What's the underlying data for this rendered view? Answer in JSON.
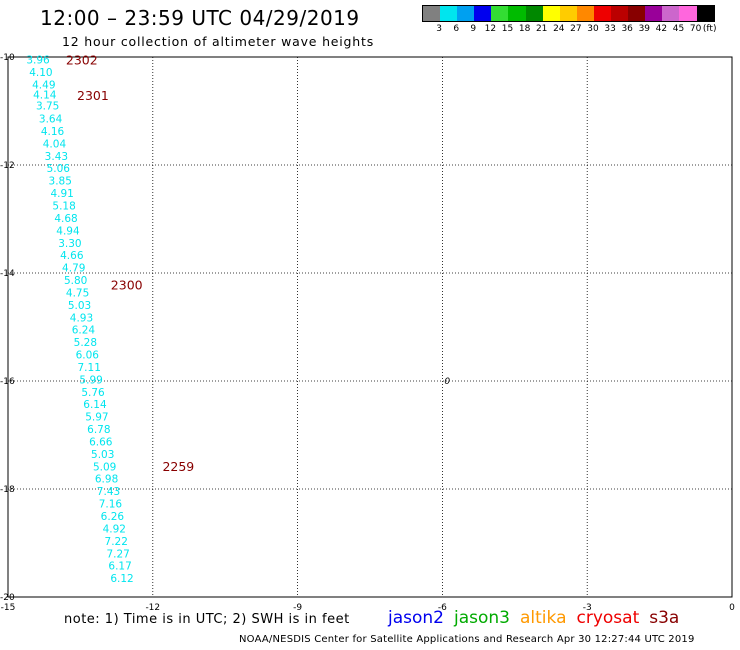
{
  "header": {
    "title": "12:00 – 23:59 UTC 04/29/2019",
    "subtitle": "12 hour collection of altimeter wave heights"
  },
  "colorbar": {
    "colors": [
      "#808080",
      "#00e5ee",
      "#00a0f0",
      "#0000ee",
      "#33dd33",
      "#00bb00",
      "#008800",
      "#ffff00",
      "#ffcc00",
      "#ff8800",
      "#ee0000",
      "#bb0000",
      "#880000",
      "#990099",
      "#cc66cc",
      "#ff66dd",
      "#000000"
    ],
    "labels": [
      "3",
      "6",
      "9",
      "12",
      "15",
      "18",
      "21",
      "24",
      "27",
      "30",
      "33",
      "36",
      "39",
      "42",
      "45",
      "70"
    ],
    "unit_label": "(ft)"
  },
  "chart_data": {
    "type": "scatter",
    "xlim": [
      -15,
      0
    ],
    "ylim": [
      -20,
      -10
    ],
    "x_ticks": [
      -15,
      -12,
      -9,
      -6,
      -3,
      0
    ],
    "y_ticks": [
      -10,
      -12,
      -14,
      -16,
      -18,
      -20
    ],
    "grid": "dotted",
    "swh_points": [
      {
        "x": -14.62,
        "y": -10.05,
        "label": "3.96"
      },
      {
        "x": -14.56,
        "y": -10.28,
        "label": "4.10"
      },
      {
        "x": -14.5,
        "y": -10.51,
        "label": "4.49"
      },
      {
        "x": -14.48,
        "y": -10.69,
        "label": "4.14"
      },
      {
        "x": -14.42,
        "y": -10.9,
        "label": "3.75"
      },
      {
        "x": -14.36,
        "y": -11.14,
        "label": "3.64"
      },
      {
        "x": -14.32,
        "y": -11.37,
        "label": "4.16"
      },
      {
        "x": -14.28,
        "y": -11.6,
        "label": "4.04"
      },
      {
        "x": -14.24,
        "y": -11.83,
        "label": "3.43"
      },
      {
        "x": -14.2,
        "y": -12.06,
        "label": "5.06"
      },
      {
        "x": -14.16,
        "y": -12.29,
        "label": "3.85"
      },
      {
        "x": -14.12,
        "y": -12.52,
        "label": "4.91"
      },
      {
        "x": -14.08,
        "y": -12.75,
        "label": "5.18"
      },
      {
        "x": -14.04,
        "y": -12.98,
        "label": "4.68"
      },
      {
        "x": -14.0,
        "y": -13.21,
        "label": "4.94"
      },
      {
        "x": -13.96,
        "y": -13.44,
        "label": "3.30"
      },
      {
        "x": -13.92,
        "y": -13.67,
        "label": "4.66"
      },
      {
        "x": -13.88,
        "y": -13.9,
        "label": "4.79"
      },
      {
        "x": -13.84,
        "y": -14.13,
        "label": "5.80"
      },
      {
        "x": -13.8,
        "y": -14.36,
        "label": "4.75"
      },
      {
        "x": -13.76,
        "y": -14.59,
        "label": "5.03"
      },
      {
        "x": -13.72,
        "y": -14.82,
        "label": "4.93"
      },
      {
        "x": -13.68,
        "y": -15.05,
        "label": "6.24"
      },
      {
        "x": -13.64,
        "y": -15.28,
        "label": "5.28"
      },
      {
        "x": -13.6,
        "y": -15.51,
        "label": "6.06"
      },
      {
        "x": -13.56,
        "y": -15.74,
        "label": "7.11"
      },
      {
        "x": -13.52,
        "y": -15.97,
        "label": "5.99"
      },
      {
        "x": -13.48,
        "y": -16.2,
        "label": "5.76"
      },
      {
        "x": -13.44,
        "y": -16.43,
        "label": "6.14"
      },
      {
        "x": -13.4,
        "y": -16.66,
        "label": "5.97"
      },
      {
        "x": -13.36,
        "y": -16.89,
        "label": "6.78"
      },
      {
        "x": -13.32,
        "y": -17.12,
        "label": "6.66"
      },
      {
        "x": -13.28,
        "y": -17.35,
        "label": "5.03"
      },
      {
        "x": -13.24,
        "y": -17.58,
        "label": "5.09"
      },
      {
        "x": -13.2,
        "y": -17.81,
        "label": "6.98"
      },
      {
        "x": -13.16,
        "y": -18.04,
        "label": "7.43"
      },
      {
        "x": -13.12,
        "y": -18.27,
        "label": "7.16"
      },
      {
        "x": -13.08,
        "y": -18.5,
        "label": "6.26"
      },
      {
        "x": -13.04,
        "y": -18.73,
        "label": "4.92"
      },
      {
        "x": -13.0,
        "y": -18.96,
        "label": "7.22"
      },
      {
        "x": -12.96,
        "y": -19.19,
        "label": "7.27"
      },
      {
        "x": -12.92,
        "y": -19.42,
        "label": "6.17"
      },
      {
        "x": -12.88,
        "y": -19.65,
        "label": "6.12"
      }
    ],
    "time_labels": [
      {
        "x": -13.8,
        "y": -10.05,
        "label": "2302"
      },
      {
        "x": -13.57,
        "y": -10.7,
        "label": "2301"
      },
      {
        "x": -12.87,
        "y": -14.21,
        "label": "2300"
      },
      {
        "x": -11.8,
        "y": -17.57,
        "label": "2259"
      }
    ],
    "misc_marks": [
      {
        "x": -6.0,
        "y": -16.0,
        "label": "0"
      }
    ]
  },
  "footer": {
    "note": "note:  1) Time is in UTC;  2) SWH is in feet",
    "satellites": [
      {
        "name": "jason2",
        "color": "#0000ee"
      },
      {
        "name": "jason3",
        "color": "#00aa00"
      },
      {
        "name": "altika",
        "color": "#ff9900"
      },
      {
        "name": "cryosat",
        "color": "#ee0000"
      },
      {
        "name": "s3a",
        "color": "#880000"
      }
    ],
    "credit": "NOAA/NESDIS Center for Satellite Applications and Research    Apr 30 12:27:44 UTC 2019"
  },
  "colors": {
    "swh_label": "#00e5ee",
    "time_label": "#880000",
    "grid": "#000000"
  }
}
